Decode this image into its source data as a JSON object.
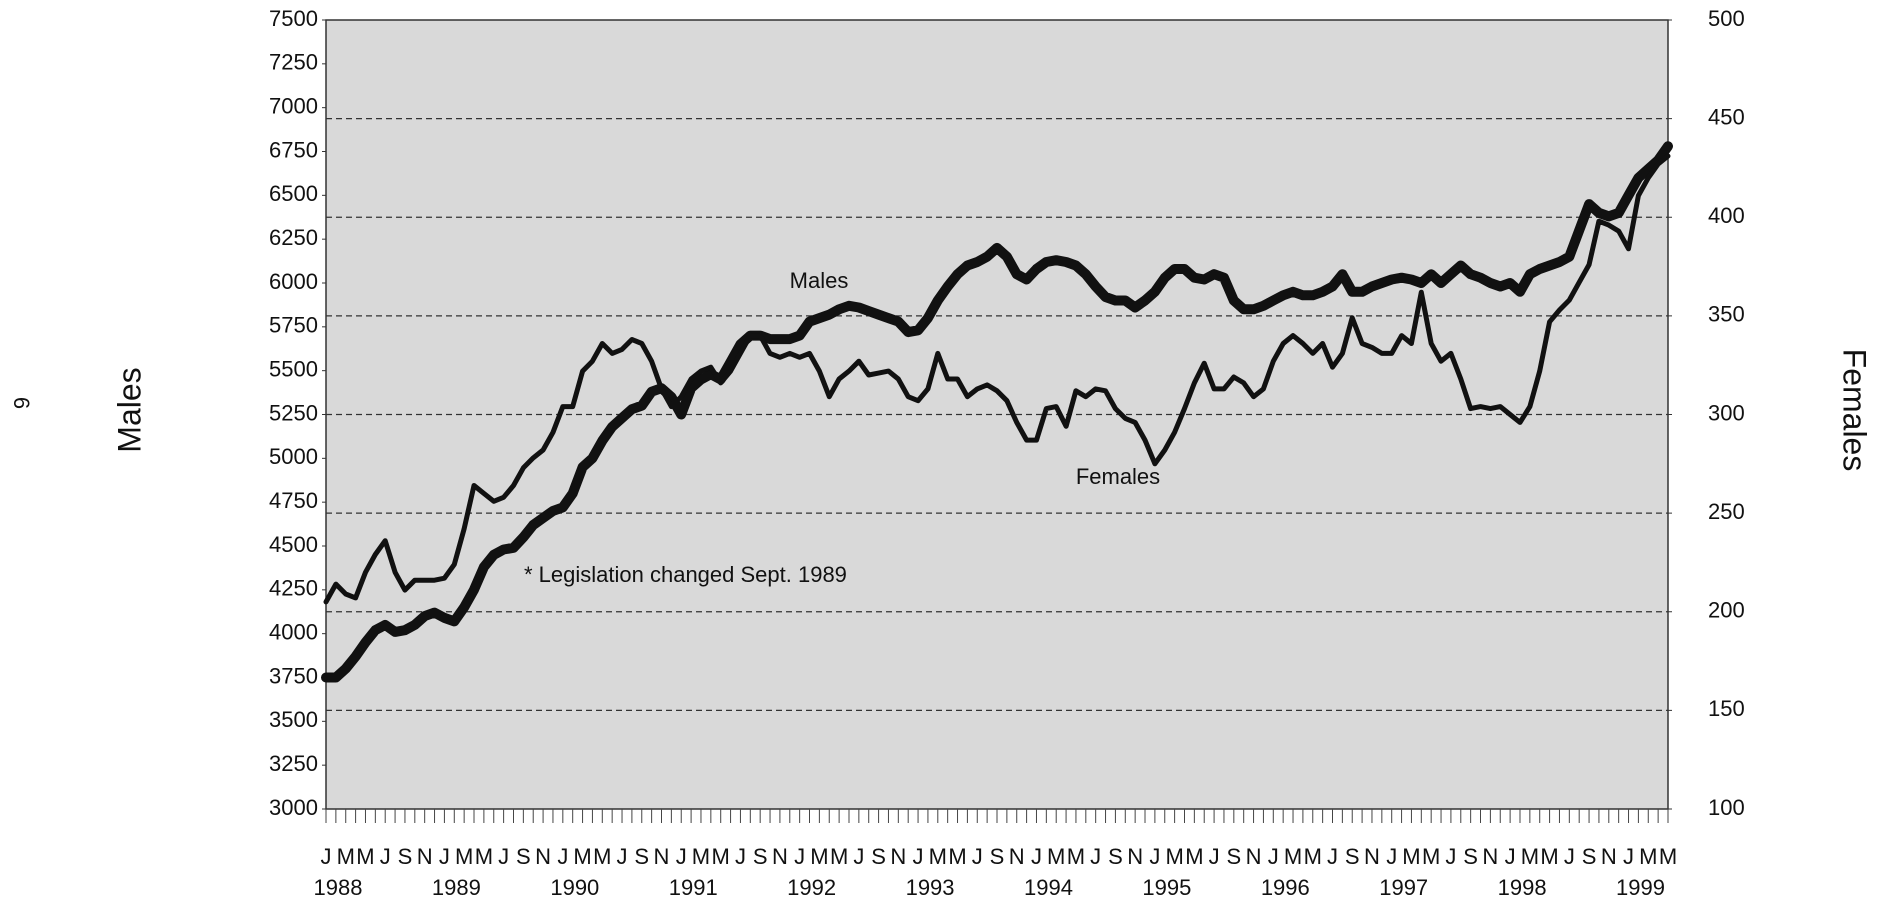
{
  "chart_data": {
    "type": "line",
    "page_number": "6",
    "y_label": "Males",
    "y2_label": "Females",
    "annotations": [
      "Males",
      "Females",
      "* Legislation changed Sept. 1989"
    ],
    "categories": [
      "J",
      null,
      "M",
      null,
      "M",
      null,
      "J",
      null,
      "S",
      null,
      "N",
      null,
      "J",
      null,
      "M",
      null,
      "M",
      null,
      "J",
      null,
      "S",
      null,
      "N",
      null,
      "J",
      null,
      "M",
      null,
      "M",
      null,
      "J",
      null,
      "S",
      null,
      "N",
      null,
      "J",
      null,
      "M",
      null,
      "M",
      null,
      "J",
      null,
      "S",
      null,
      "N",
      null,
      "J",
      null,
      "M",
      null,
      "M",
      null,
      "J",
      null,
      "S",
      null,
      "N",
      null,
      "J",
      null,
      "M",
      null,
      "M",
      null,
      "J",
      null,
      "S",
      null,
      "N",
      null,
      "J",
      null,
      "M",
      null,
      "M",
      null,
      "J",
      null,
      "S",
      null,
      "N",
      null,
      "J",
      null,
      "M",
      null,
      "M",
      null,
      "J",
      null,
      "S",
      null,
      "N",
      null,
      "J",
      null,
      "M",
      null,
      "M",
      null,
      "J",
      null,
      "S",
      null,
      "N",
      null,
      "J",
      null,
      "M",
      null,
      "M",
      null,
      "J",
      null,
      "S",
      null,
      "N",
      null,
      "J",
      null,
      "M",
      null,
      "M",
      null,
      "J",
      null,
      "S",
      null,
      "N",
      null,
      "J",
      null,
      "M",
      null,
      "M"
    ],
    "year_labels": [
      "1988",
      "1989",
      "1990",
      "1991",
      "1992",
      "1993",
      "1994",
      "1995",
      "1996",
      "1997",
      "1998",
      "1999"
    ],
    "series": [
      {
        "name": "Males",
        "color": "#111111",
        "axis": "y",
        "width": 10,
        "values": [
          3750,
          3750,
          3800,
          3870,
          3950,
          4020,
          4050,
          4010,
          4020,
          4050,
          4100,
          4120,
          4090,
          4070,
          4150,
          4250,
          4380,
          4450,
          4480,
          4490,
          4550,
          4620,
          4660,
          4700,
          4720,
          4800,
          4950,
          5000,
          5100,
          5180,
          5230,
          5280,
          5300,
          5380,
          5400,
          5350,
          5250,
          5400,
          5450,
          5480,
          5450,
          5550,
          5650,
          5700,
          5700,
          5680,
          5680,
          5680,
          5700,
          5780,
          5800,
          5820,
          5850,
          5870,
          5860,
          5840,
          5820,
          5800,
          5780,
          5720,
          5730,
          5800,
          5900,
          5980,
          6050,
          6100,
          6120,
          6150,
          6200,
          6150,
          6050,
          6020,
          6080,
          6120,
          6130,
          6120,
          6100,
          6050,
          5980,
          5920,
          5900,
          5900,
          5860,
          5900,
          5950,
          6030,
          6080,
          6080,
          6030,
          6020,
          6050,
          6030,
          5900,
          5850,
          5850,
          5870,
          5900,
          5930,
          5950,
          5930,
          5930,
          5950,
          5980,
          6050,
          5950,
          5950,
          5980,
          6000,
          6020,
          6030,
          6020,
          6000,
          6050,
          6000,
          6050,
          6100,
          6050,
          6030,
          6000,
          5980,
          6000,
          5950,
          6050,
          6080,
          6100,
          6120,
          6150,
          6300,
          6450,
          6400,
          6380,
          6400,
          6500,
          6600,
          6650,
          6700,
          6780
        ]
      },
      {
        "name": "Females",
        "color": "#111111",
        "axis": "y2",
        "width": 5,
        "values": [
          205,
          214,
          209,
          207,
          220,
          229,
          236,
          220,
          211,
          216,
          216,
          216,
          217,
          224,
          242,
          264,
          260,
          256,
          258,
          264,
          273,
          278,
          282,
          291,
          304,
          304,
          322,
          327,
          336,
          331,
          333,
          338,
          336,
          327,
          313,
          304,
          309,
          318,
          322,
          324,
          316,
          322,
          331,
          340,
          340,
          331,
          329,
          331,
          329,
          331,
          322,
          309,
          318,
          322,
          327,
          320,
          321,
          322,
          318,
          309,
          307,
          313,
          331,
          318,
          318,
          309,
          313,
          315,
          312,
          307,
          296,
          287,
          287,
          303,
          304,
          294,
          312,
          309,
          313,
          312,
          303,
          298,
          296,
          287,
          275,
          282,
          291,
          303,
          316,
          326,
          313,
          313,
          319,
          316,
          309,
          313,
          327,
          336,
          340,
          336,
          331,
          336,
          324,
          331,
          349,
          336,
          334,
          331,
          331,
          340,
          336,
          362,
          336,
          327,
          331,
          318,
          303,
          304,
          303,
          304,
          300,
          296,
          304,
          322,
          347,
          353,
          358,
          367,
          376,
          398,
          396,
          393,
          384,
          411,
          420,
          427,
          431
        ]
      }
    ],
    "ylim": [
      3000,
      7500
    ],
    "yticks": [
      3000,
      3250,
      3500,
      3750,
      4000,
      4250,
      4500,
      4750,
      5000,
      5250,
      5500,
      5750,
      6000,
      6250,
      6500,
      6750,
      7000,
      7250,
      7500
    ],
    "y2lim": [
      100,
      500
    ],
    "y2ticks": [
      100,
      150,
      200,
      250,
      300,
      350,
      400,
      450,
      500
    ],
    "grid": "y2",
    "background": "#d9d9d9"
  }
}
